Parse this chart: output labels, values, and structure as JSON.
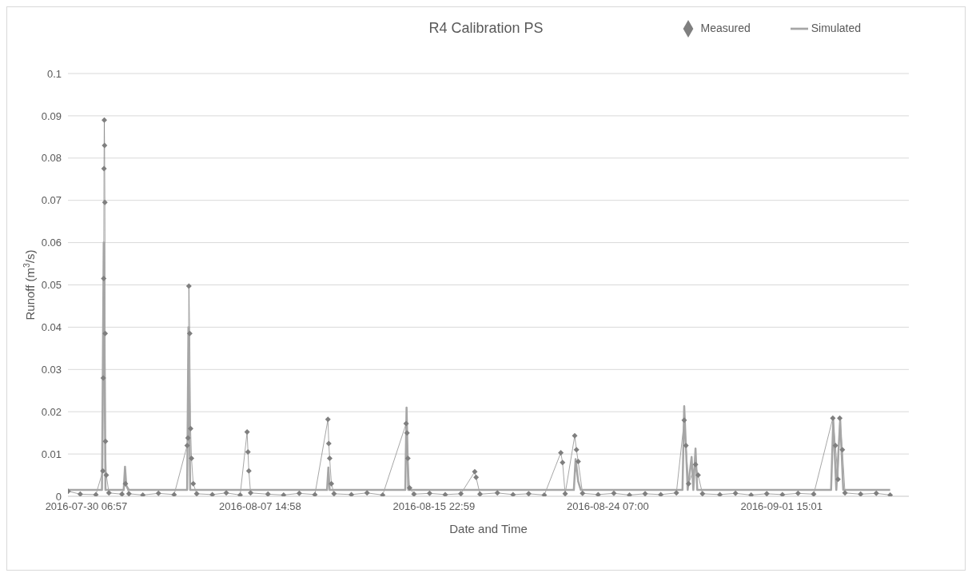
{
  "chart_data": {
    "type": "line",
    "title": "R4 Calibration PS",
    "xlabel": "Date and Time",
    "ylabel": "Runoff (m$^{3}$/s)",
    "xlim": [
      "2016-07-29T09:50",
      "2016-09-07T17:30"
    ],
    "xticks": [
      {
        "value": "2016-07-30T06:57",
        "label": "2016-07-30 06:57"
      },
      {
        "value": "2016-08-07T14:58",
        "label": "2016-08-07 14:58"
      },
      {
        "value": "2016-08-15T22:59",
        "label": "2016-08-15 22:59"
      },
      {
        "value": "2016-08-24T07:00",
        "label": "2016-08-24 07:00"
      },
      {
        "value": "2016-09-01T15:01",
        "label": "2016-09-01 15:01"
      }
    ],
    "ylim": [
      0,
      0.1
    ],
    "yticks": [
      0,
      0.01,
      0.02,
      0.03,
      0.04,
      0.05,
      0.06,
      0.07,
      0.08,
      0.09,
      0.1
    ],
    "grid": "y",
    "legend": "top right",
    "series": [
      {
        "name": "Measured",
        "color": "#7f7f7f",
        "marker": "diamond",
        "line_style": "solid",
        "x": [
          "2016-07-29T10:00",
          "2016-07-30T00:00",
          "2016-07-30T18:00",
          "2016-07-31T02:00",
          "2016-07-31T02:30",
          "2016-07-31T03:00",
          "2016-07-31T03:20",
          "2016-07-31T03:40",
          "2016-07-31T04:00",
          "2016-07-31T04:20",
          "2016-07-31T04:40",
          "2016-07-31T05:00",
          "2016-07-31T06:00",
          "2016-07-31T09:00",
          "2016-08-01T00:00",
          "2016-08-01T04:00",
          "2016-08-01T08:00",
          "2016-08-02T00:00",
          "2016-08-02T18:00",
          "2016-08-03T12:00",
          "2016-08-04T03:00",
          "2016-08-04T04:00",
          "2016-08-04T05:00",
          "2016-08-04T06:00",
          "2016-08-04T07:00",
          "2016-08-04T08:00",
          "2016-08-04T10:00",
          "2016-08-04T14:00",
          "2016-08-05T08:00",
          "2016-08-06T00:00",
          "2016-08-06T16:00",
          "2016-08-07T00:00",
          "2016-08-07T01:00",
          "2016-08-07T02:00",
          "2016-08-07T04:00",
          "2016-08-08T00:00",
          "2016-08-08T18:00",
          "2016-08-09T12:00",
          "2016-08-10T06:00",
          "2016-08-10T21:00",
          "2016-08-10T22:00",
          "2016-08-10T23:00",
          "2016-08-11T01:00",
          "2016-08-11T04:00",
          "2016-08-12T00:00",
          "2016-08-12T18:00",
          "2016-08-13T12:00",
          "2016-08-14T15:00",
          "2016-08-14T16:00",
          "2016-08-14T17:00",
          "2016-08-14T19:00",
          "2016-08-15T00:00",
          "2016-08-15T18:00",
          "2016-08-16T12:00",
          "2016-08-17T06:00",
          "2016-08-17T22:00",
          "2016-08-17T23:30",
          "2016-08-18T04:00",
          "2016-08-19T00:00",
          "2016-08-19T18:00",
          "2016-08-20T12:00",
          "2016-08-21T06:00",
          "2016-08-22T01:00",
          "2016-08-22T03:00",
          "2016-08-22T06:00",
          "2016-08-22T17:00",
          "2016-08-22T19:00",
          "2016-08-22T21:00",
          "2016-08-23T02:00",
          "2016-08-23T20:00",
          "2016-08-24T14:00",
          "2016-08-25T08:00",
          "2016-08-26T02:00",
          "2016-08-26T20:00",
          "2016-08-27T14:00",
          "2016-08-27T23:00",
          "2016-08-28T01:00",
          "2016-08-28T04:00",
          "2016-08-28T12:00",
          "2016-08-28T15:00",
          "2016-08-28T20:00",
          "2016-08-29T16:00",
          "2016-08-30T10:00",
          "2016-08-31T04:00",
          "2016-08-31T22:00",
          "2016-09-01T16:00",
          "2016-09-02T10:00",
          "2016-09-03T04:00",
          "2016-09-04T02:00",
          "2016-09-04T05:00",
          "2016-09-04T08:00",
          "2016-09-04T10:00",
          "2016-09-04T13:00",
          "2016-09-04T16:00",
          "2016-09-05T10:00",
          "2016-09-06T04:00",
          "2016-09-06T20:00"
        ],
        "values": [
          0.0012,
          0.0005,
          0.0004,
          0.006,
          0.028,
          0.0515,
          0.0775,
          0.089,
          0.083,
          0.0695,
          0.0385,
          0.013,
          0.005,
          0.0008,
          0.0005,
          0.003,
          0.0006,
          0.0003,
          0.0007,
          0.0004,
          0.012,
          0.0138,
          0.0497,
          0.0385,
          0.016,
          0.009,
          0.003,
          0.0006,
          0.0004,
          0.0008,
          0.0003,
          0.0152,
          0.0105,
          0.006,
          0.0008,
          0.0005,
          0.0003,
          0.0007,
          0.0004,
          0.0182,
          0.0125,
          0.009,
          0.003,
          0.0006,
          0.0004,
          0.0008,
          0.0003,
          0.0172,
          0.015,
          0.009,
          0.002,
          0.0005,
          0.0007,
          0.0004,
          0.0006,
          0.0058,
          0.0045,
          0.0005,
          0.0008,
          0.0004,
          0.0006,
          0.0003,
          0.0103,
          0.008,
          0.0006,
          0.0143,
          0.011,
          0.0082,
          0.0007,
          0.0004,
          0.0007,
          0.0003,
          0.0006,
          0.0004,
          0.0008,
          0.018,
          0.012,
          0.003,
          0.0075,
          0.005,
          0.0006,
          0.0004,
          0.0007,
          0.0003,
          0.0006,
          0.0004,
          0.0007,
          0.0005,
          0.0185,
          0.012,
          0.004,
          0.0185,
          0.011,
          0.0008,
          0.0005,
          0.0007,
          0.0003
        ]
      },
      {
        "name": "Simulated",
        "color": "#a6a6a6",
        "marker": "none",
        "line_style": "solid",
        "x": [
          "2016-07-29T10:00",
          "2016-07-31T01:00",
          "2016-07-31T03:00",
          "2016-07-31T05:00",
          "2016-08-01T02:00",
          "2016-08-01T03:30",
          "2016-08-01T05:00",
          "2016-08-01T08:00",
          "2016-08-04T03:00",
          "2016-08-04T04:30",
          "2016-08-04T06:30",
          "2016-08-10T20:00",
          "2016-08-10T21:30",
          "2016-08-10T23:00",
          "2016-08-14T14:00",
          "2016-08-14T15:30",
          "2016-08-14T17:30",
          "2016-08-22T16:00",
          "2016-08-22T18:00",
          "2016-08-22T21:00",
          "2016-08-23T00:00",
          "2016-08-27T21:00",
          "2016-08-27T23:00",
          "2016-08-28T03:00",
          "2016-08-28T07:30",
          "2016-08-28T09:30",
          "2016-08-28T12:00",
          "2016-08-28T14:00",
          "2016-09-04T00:00",
          "2016-09-04T02:30",
          "2016-09-04T06:00",
          "2016-09-04T10:30",
          "2016-09-04T14:00",
          "2016-09-06T20:00"
        ],
        "values": [
          0.0015,
          0.0015,
          0.06,
          0.0015,
          0.0015,
          0.007,
          0.0025,
          0.0015,
          0.0015,
          0.04,
          0.0015,
          0.0015,
          0.0068,
          0.0015,
          0.0015,
          0.021,
          0.0015,
          0.0015,
          0.0088,
          0.0035,
          0.0015,
          0.0015,
          0.0213,
          0.0015,
          0.0093,
          0.0015,
          0.0113,
          0.0015,
          0.0015,
          0.018,
          0.0015,
          0.018,
          0.0015,
          0.0015
        ]
      }
    ]
  }
}
